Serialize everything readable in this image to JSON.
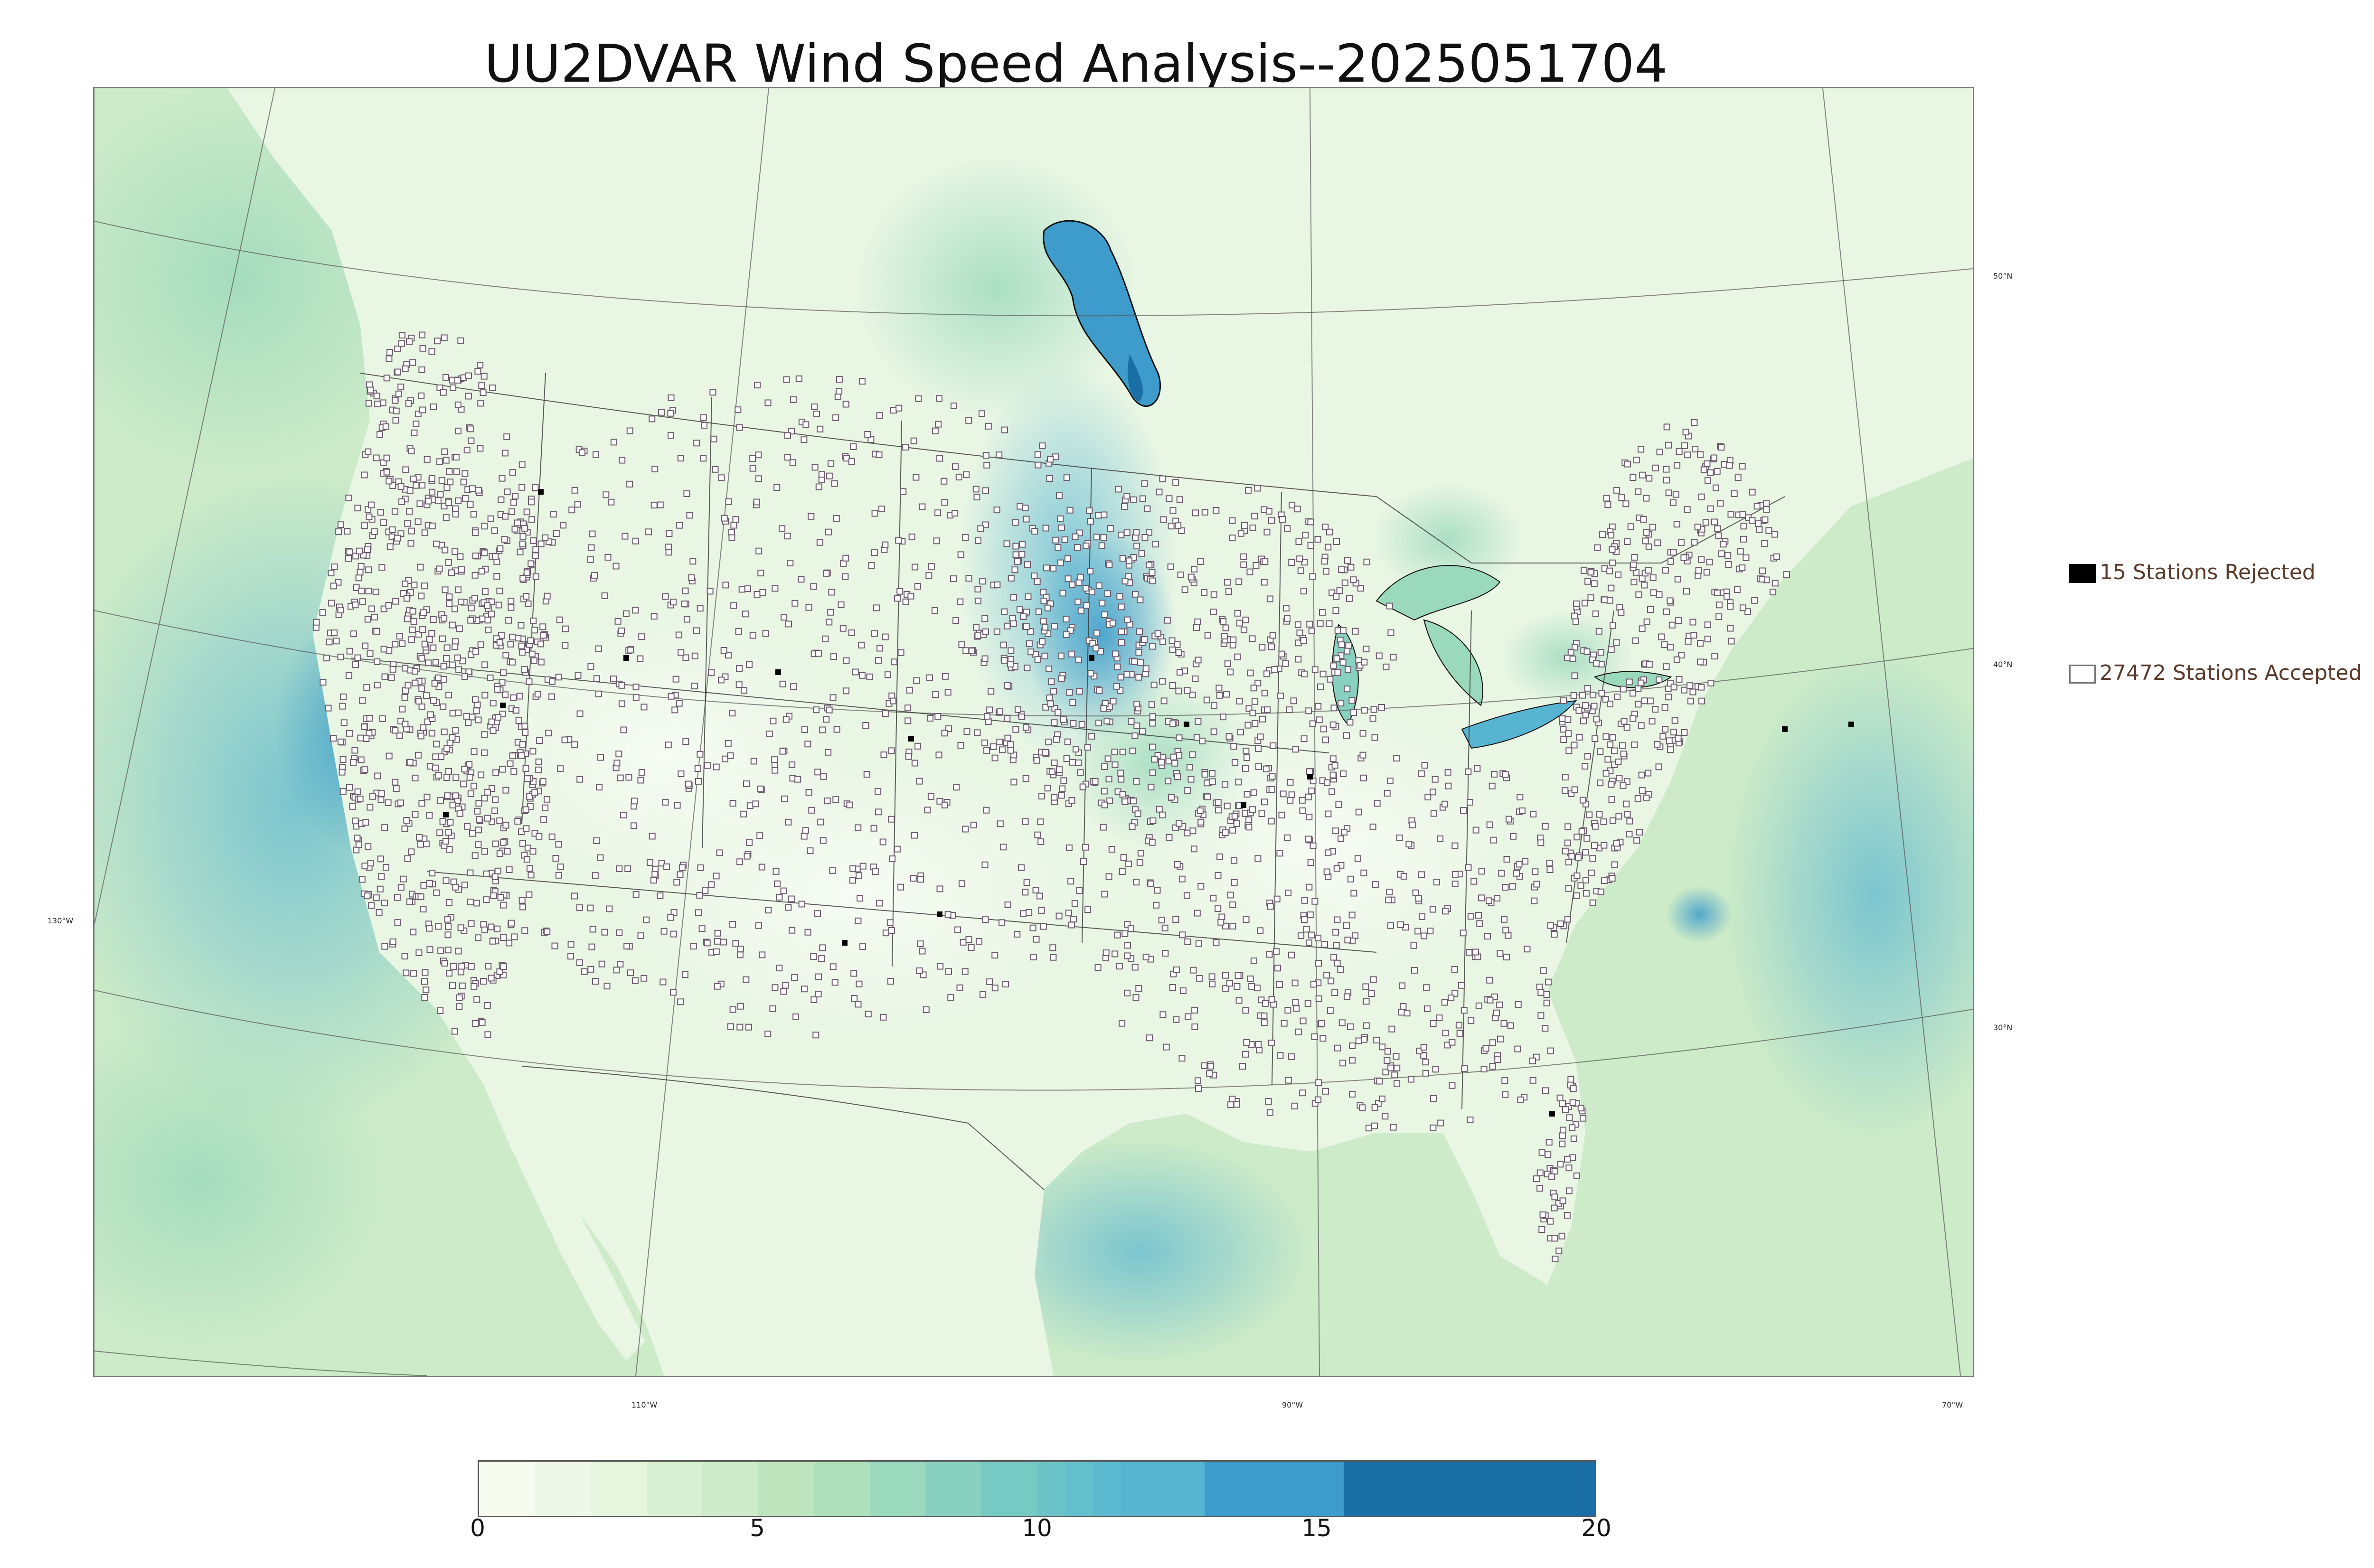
{
  "title": "UU2DVAR Wind Speed Analysis--2025051704",
  "legend": {
    "rejected_label": "15 Stations Rejected",
    "accepted_label": "27472 Stations Accepted"
  },
  "coordinates": {
    "lat_50": "50°N",
    "lat_40": "40°N",
    "lat_30": "30°N",
    "lon_130": "130°W",
    "lon_110": "110°W",
    "lon_90": "90°W",
    "lon_70": "70°W"
  },
  "colorbar": {
    "ticks": [
      "0",
      "5",
      "10",
      "15",
      "20"
    ],
    "min": 0,
    "max": 20,
    "bins": [
      {
        "from": 0,
        "to": 1,
        "color": "#f5fbef"
      },
      {
        "from": 1,
        "to": 2,
        "color": "#eef8e8"
      },
      {
        "from": 2,
        "to": 3,
        "color": "#e5f5de"
      },
      {
        "from": 3,
        "to": 4,
        "color": "#daf0d4"
      },
      {
        "from": 4,
        "to": 5,
        "color": "#cdebc8"
      },
      {
        "from": 5,
        "to": 6,
        "color": "#bfe5bf"
      },
      {
        "from": 6,
        "to": 7,
        "color": "#ade0bb"
      },
      {
        "from": 7,
        "to": 8,
        "color": "#9bd9bc"
      },
      {
        "from": 8,
        "to": 9,
        "color": "#88d1c0"
      },
      {
        "from": 9,
        "to": 10,
        "color": "#77c9c4"
      },
      {
        "from": 10,
        "to": 10.5,
        "color": "#6cc4c9"
      },
      {
        "from": 10.5,
        "to": 11,
        "color": "#63bfcc"
      },
      {
        "from": 11,
        "to": 11.5,
        "color": "#5bbacf"
      },
      {
        "from": 11.5,
        "to": 13,
        "color": "#58b5d2"
      },
      {
        "from": 13,
        "to": 15.5,
        "color": "#3d9ccb"
      },
      {
        "from": 15.5,
        "to": 20,
        "color": "#1a6ea6"
      }
    ]
  },
  "colors": {
    "land": "#e9f6e4",
    "ocean": "#cdebc8",
    "high_wind": "#3d9ccb",
    "very_high_wind": "#1a6ea6"
  }
}
